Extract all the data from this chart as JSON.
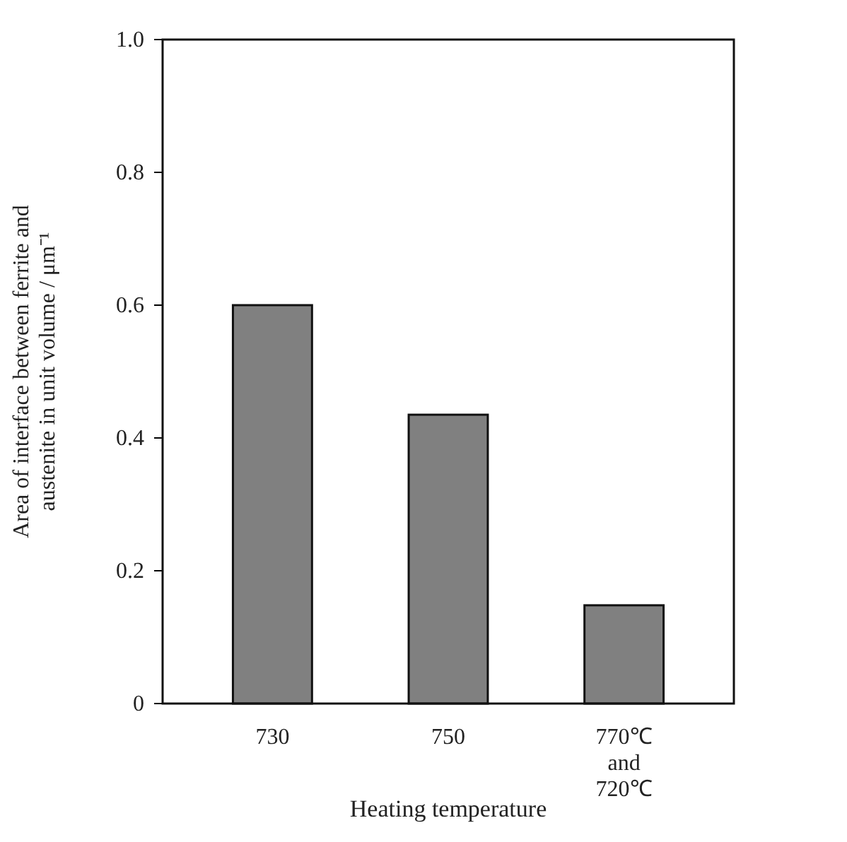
{
  "chart_data": {
    "type": "bar",
    "xlabel": "Heating temperature",
    "ylabel": "Area of interface between ferrite and austenite in unit volume / μm⁻¹",
    "categories": [
      "730",
      "750",
      "770℃ and 720℃"
    ],
    "values": [
      0.6,
      0.435,
      0.148
    ],
    "color": "#808080",
    "ylim": [
      0,
      1
    ],
    "yticks": [
      0,
      0.2,
      0.4,
      0.6,
      0.8,
      {
        "value": 1,
        "label": "1.0"
      }
    ],
    "grid": false
  }
}
